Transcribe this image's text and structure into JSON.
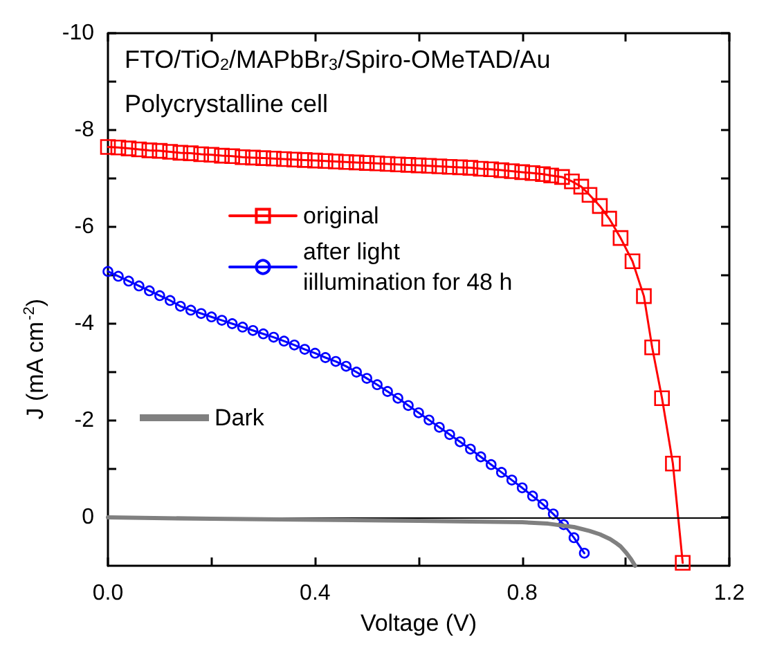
{
  "chart_data": {
    "type": "line",
    "xlabel": "Voltage (V)",
    "ylabel": "J (mA cm$^{-2}$)",
    "annotations": [
      "FTO/TiO$_{2}$/MAPbBr$_{3}$/Spiro-OMeTAD/Au",
      "Polycrystalline cell"
    ],
    "xlim": [
      0,
      1.2
    ],
    "xticks": [
      {
        "value": 0,
        "label": "0.0"
      },
      {
        "value": 0.2,
        "label": null
      },
      0.4,
      {
        "value": 0.6,
        "label": null
      },
      0.8,
      {
        "value": 1.0,
        "label": null
      },
      1.2
    ],
    "ylim": [
      1,
      -10
    ],
    "yticks": [
      -10,
      {
        "value": -9,
        "label": null
      },
      -8,
      {
        "value": -7,
        "label": null
      },
      -6,
      {
        "value": -5,
        "label": null
      },
      -4,
      {
        "value": -3,
        "label": null
      },
      -2,
      {
        "value": -1,
        "label": null
      },
      0
    ],
    "grid": false,
    "legend": "left",
    "line_style": "solid",
    "ref_lines": [
      {
        "axis": "y",
        "value": 0,
        "color": "#000000"
      }
    ],
    "series": [
      {
        "name": "original",
        "color": "#ff0000",
        "marker": "square",
        "x": [
          0,
          0.02,
          0.04,
          0.06,
          0.08,
          0.1,
          0.12,
          0.14,
          0.16,
          0.18,
          0.2,
          0.22,
          0.24,
          0.26,
          0.28,
          0.3,
          0.32,
          0.34,
          0.36,
          0.38,
          0.4,
          0.42,
          0.44,
          0.46,
          0.48,
          0.5,
          0.52,
          0.54,
          0.56,
          0.58,
          0.6,
          0.62,
          0.64,
          0.66,
          0.68,
          0.7,
          0.72,
          0.74,
          0.76,
          0.78,
          0.8,
          0.82,
          0.84,
          0.856,
          0.877,
          0.896,
          0.914,
          0.93,
          0.95,
          0.968,
          0.99,
          1.013,
          1.035,
          1.051,
          1.07,
          1.091,
          1.11
        ],
        "values": [
          -7.65,
          -7.64,
          -7.62,
          -7.6,
          -7.58,
          -7.57,
          -7.55,
          -7.53,
          -7.52,
          -7.5,
          -7.49,
          -7.47,
          -7.46,
          -7.44,
          -7.43,
          -7.42,
          -7.41,
          -7.4,
          -7.39,
          -7.38,
          -7.37,
          -7.36,
          -7.35,
          -7.34,
          -7.33,
          -7.32,
          -7.31,
          -7.3,
          -7.29,
          -7.28,
          -7.27,
          -7.26,
          -7.25,
          -7.24,
          -7.23,
          -7.22,
          -7.2,
          -7.19,
          -7.17,
          -7.15,
          -7.13,
          -7.11,
          -7.09,
          -7.06,
          -7.03,
          -6.94,
          -6.83,
          -6.66,
          -6.43,
          -6.17,
          -5.77,
          -5.29,
          -4.57,
          -3.51,
          -2.46,
          -1.11,
          0.94
        ]
      },
      {
        "name": "after light iillumination for 48 h",
        "color": "#0000ff",
        "marker": "circle",
        "x": [
          0,
          0.02,
          0.04,
          0.06,
          0.08,
          0.1,
          0.12,
          0.14,
          0.16,
          0.18,
          0.2,
          0.22,
          0.24,
          0.26,
          0.28,
          0.3,
          0.32,
          0.34,
          0.36,
          0.38,
          0.4,
          0.42,
          0.44,
          0.46,
          0.48,
          0.5,
          0.52,
          0.54,
          0.56,
          0.58,
          0.6,
          0.62,
          0.64,
          0.66,
          0.68,
          0.7,
          0.72,
          0.74,
          0.76,
          0.78,
          0.8,
          0.82,
          0.84,
          0.86,
          0.88,
          0.9,
          0.92
        ],
        "values": [
          -5.08,
          -4.98,
          -4.88,
          -4.78,
          -4.68,
          -4.58,
          -4.48,
          -4.36,
          -4.28,
          -4.21,
          -4.14,
          -4.07,
          -4.0,
          -3.93,
          -3.86,
          -3.79,
          -3.72,
          -3.64,
          -3.56,
          -3.47,
          -3.39,
          -3.3,
          -3.22,
          -3.12,
          -3.0,
          -2.87,
          -2.74,
          -2.6,
          -2.46,
          -2.31,
          -2.16,
          -2.01,
          -1.86,
          -1.71,
          -1.56,
          -1.41,
          -1.25,
          -1.09,
          -0.93,
          -0.77,
          -0.61,
          -0.44,
          -0.27,
          -0.07,
          0.15,
          0.42,
          0.74
        ]
      },
      {
        "name": "Dark",
        "color": "#808080",
        "marker": "none",
        "x": [
          0,
          0.2,
          0.4,
          0.6,
          0.8,
          0.85,
          0.9,
          0.93,
          0.95,
          0.97,
          0.98,
          0.99,
          1.0,
          1.01,
          1.018
        ],
        "values": [
          0,
          0.03,
          0.05,
          0.07,
          0.1,
          0.13,
          0.2,
          0.28,
          0.35,
          0.45,
          0.52,
          0.6,
          0.72,
          0.86,
          1.0
        ]
      }
    ]
  }
}
